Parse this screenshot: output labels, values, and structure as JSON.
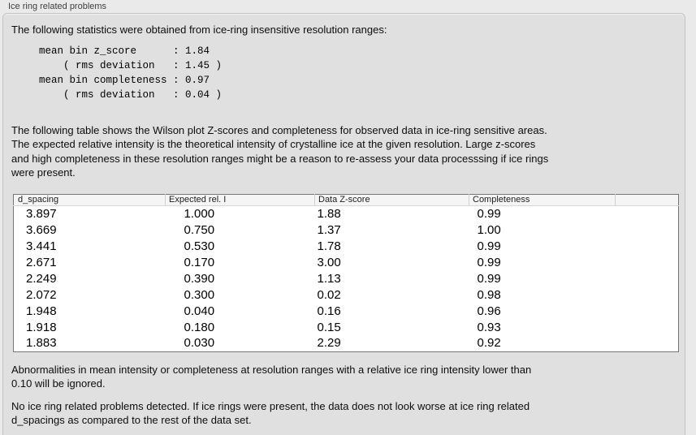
{
  "group": {
    "title": "Ice ring related problems"
  },
  "intro": {
    "text": "The following statistics were obtained from ice-ring insensitive resolution ranges:",
    "stats": "mean bin z_score      : 1.84\n    ( rms deviation   : 1.45 )\nmean bin completeness : 0.97\n    ( rms deviation   : 0.04 )"
  },
  "description": "The following table shows the Wilson plot Z-scores and completeness for observed data in ice-ring sensitive areas.\nThe expected relative intensity is the theoretical intensity of crystalline ice at the given resolution. Large z-scores\nand high completeness in these resolution ranges might be a reason to re-assess your data processsing if ice rings\nwere present.",
  "table": {
    "columns": [
      "d_spacing",
      "Expected rel. I",
      "Data Z-score",
      "Completeness"
    ],
    "rows": [
      [
        "3.897",
        "1.000",
        "1.88",
        "0.99"
      ],
      [
        "3.669",
        "0.750",
        "1.37",
        "1.00"
      ],
      [
        "3.441",
        "0.530",
        "1.78",
        "0.99"
      ],
      [
        "2.671",
        "0.170",
        "3.00",
        "0.99"
      ],
      [
        "2.249",
        "0.390",
        "1.13",
        "0.99"
      ],
      [
        "2.072",
        "0.300",
        "0.02",
        "0.98"
      ],
      [
        "1.948",
        "0.040",
        "0.16",
        "0.96"
      ],
      [
        "1.918",
        "0.180",
        "0.15",
        "0.93"
      ],
      [
        "1.883",
        "0.030",
        "2.29",
        "0.92"
      ]
    ]
  },
  "notes": {
    "ignore_rule": "Abnormalities in mean intensity or completeness at resolution ranges with a relative ice ring intensity lower than\n0.10 will be ignored.",
    "conclusion": "No ice ring related problems detected. If ice rings were present, the data does not look worse at ice ring related\nd_spacings as compared to the rest of the data set."
  }
}
